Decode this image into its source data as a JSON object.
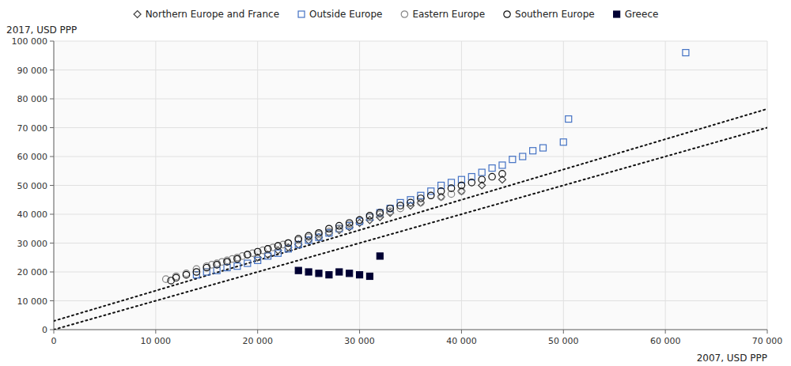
{
  "chart_data": {
    "type": "scatter",
    "xlabel": "2007, USD PPP",
    "ylabel": "2017, USD PPP",
    "xlim": [
      0,
      70000
    ],
    "ylim": [
      0,
      100000
    ],
    "xticks": [
      0,
      {
        "value": 10000,
        "label": "10 000"
      },
      {
        "value": 20000,
        "label": "20 000"
      },
      {
        "value": 30000,
        "label": "30 000"
      },
      {
        "value": 40000,
        "label": "40 000"
      },
      {
        "value": 50000,
        "label": "50 000"
      },
      {
        "value": 60000,
        "label": "60 000"
      },
      {
        "value": 70000,
        "label": "70 000"
      }
    ],
    "yticks": [
      0,
      {
        "value": 10000,
        "label": "10 000"
      },
      {
        "value": 20000,
        "label": "20 000"
      },
      {
        "value": 30000,
        "label": "30 000"
      },
      {
        "value": 40000,
        "label": "40 000"
      },
      {
        "value": 50000,
        "label": "50 000"
      },
      {
        "value": 60000,
        "label": "60 000"
      },
      {
        "value": 70000,
        "label": "70 000"
      },
      {
        "value": 80000,
        "label": "80 000"
      },
      {
        "value": 90000,
        "label": "90 000"
      },
      {
        "value": 100000,
        "label": "100 000"
      }
    ],
    "grid": true,
    "legend": "top",
    "lines": [
      {
        "x": [
          0,
          70000
        ],
        "values": [
          0,
          70000
        ],
        "line_style": "dotted",
        "color": "#111111"
      },
      {
        "x": [
          0,
          70000
        ],
        "values": [
          3000,
          76500
        ],
        "line_style": "dotted",
        "color": "#111111"
      }
    ],
    "series": [
      {
        "name": "Northern Europe and France",
        "marker": "diamond",
        "color": "#404040",
        "x": [
          20000,
          21000,
          22000,
          23000,
          24000,
          25000,
          26000,
          27000,
          28000,
          29000,
          30000,
          31000,
          32000,
          33000,
          35000,
          36000,
          38000,
          40000,
          42000,
          44000
        ],
        "values": [
          25000,
          26000,
          27500,
          28500,
          29500,
          31000,
          32000,
          33500,
          34500,
          35500,
          37000,
          38000,
          39000,
          40500,
          43000,
          44000,
          46000,
          48000,
          50000,
          52000
        ]
      },
      {
        "name": "Outside Europe",
        "marker": "square",
        "color": "#4472c4",
        "x": [
          14000,
          15000,
          16000,
          17000,
          18000,
          19000,
          20000,
          21000,
          22000,
          23000,
          24000,
          25000,
          26000,
          27000,
          28000,
          29000,
          30000,
          31000,
          32000,
          33000,
          34000,
          35000,
          36000,
          37000,
          38000,
          39000,
          40000,
          41000,
          42000,
          43000,
          44000,
          45000,
          46000,
          47000,
          48000,
          50000,
          50500,
          62000
        ],
        "values": [
          19000,
          20000,
          20500,
          21500,
          22000,
          23000,
          24000,
          25500,
          26500,
          28000,
          29500,
          31000,
          32000,
          33500,
          35000,
          36000,
          37500,
          39000,
          40500,
          42000,
          44000,
          45000,
          46500,
          48000,
          50000,
          51000,
          52000,
          53000,
          54500,
          56000,
          57000,
          59000,
          60000,
          62000,
          63000,
          65000,
          73000,
          96000
        ]
      },
      {
        "name": "Eastern Europe",
        "marker": "circle",
        "color": "#888888",
        "x": [
          11000,
          12000,
          13000,
          14000,
          15000,
          15500,
          16000,
          16500,
          17000,
          17500,
          18000,
          18500,
          19000,
          19500,
          20000,
          20500,
          21000,
          21500,
          22000,
          22500,
          23000,
          24000,
          25000,
          26000,
          27000,
          28000,
          29000,
          30000,
          31000,
          32000,
          33000,
          34000,
          36000,
          38000,
          39000,
          40000
        ],
        "values": [
          17500,
          18500,
          19500,
          21000,
          22000,
          22500,
          23000,
          23500,
          24000,
          24500,
          25000,
          25500,
          26000,
          26500,
          27000,
          27500,
          28000,
          28500,
          29000,
          29500,
          30000,
          31000,
          32000,
          33000,
          34000,
          35000,
          36500,
          38000,
          39000,
          40000,
          41000,
          42000,
          44000,
          46000,
          47000,
          48000
        ]
      },
      {
        "name": "Southern Europe",
        "marker": "circle",
        "color": "#101010",
        "x": [
          11500,
          12000,
          13000,
          14000,
          15000,
          16000,
          17000,
          18000,
          19000,
          20000,
          21000,
          22000,
          23000,
          24000,
          25000,
          26000,
          27000,
          28000,
          29000,
          30000,
          31000,
          32000,
          33000,
          34000,
          35000,
          36000,
          37000,
          38000,
          39000,
          40000,
          41000,
          42000,
          43000,
          44000
        ],
        "values": [
          17000,
          18000,
          19000,
          20000,
          21500,
          22500,
          23500,
          24500,
          26000,
          27000,
          28000,
          29000,
          30000,
          31500,
          32500,
          33500,
          35000,
          36000,
          37000,
          38000,
          39500,
          40500,
          42000,
          43000,
          44000,
          45500,
          46500,
          48000,
          49000,
          50000,
          51000,
          52000,
          53000,
          54000
        ]
      },
      {
        "name": "Greece",
        "marker": "filled-square",
        "color": "#000033",
        "x": [
          24000,
          25000,
          26000,
          27000,
          28000,
          29000,
          30000,
          31000,
          32000
        ],
        "values": [
          20500,
          20000,
          19500,
          19000,
          20000,
          19500,
          19000,
          18500,
          25500
        ]
      }
    ]
  }
}
